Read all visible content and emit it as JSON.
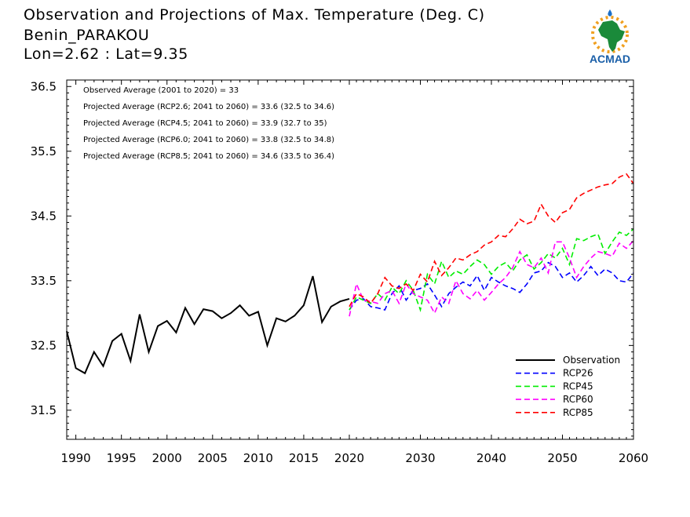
{
  "header": {
    "title_line1": "Observation and Projections of Max. Temperature (Deg. C)",
    "title_line2": "Benin_PARAKOU",
    "title_line3": "Lon=2.62 : Lat=9.35"
  },
  "logo": {
    "text": "ACMAD",
    "colors": {
      "africa": "#1a8a3a",
      "sun": "#f0a020",
      "text": "#1a5fa8"
    }
  },
  "chart_data": {
    "type": "line",
    "title": "Observation and Projections of Max. Temperature (Deg. C)",
    "xlabel": "",
    "ylabel": "",
    "xlim": [
      1989,
      2060
    ],
    "ylim": [
      31.05,
      36.6
    ],
    "x_ticks": [
      1990,
      1995,
      2000,
      2005,
      2010,
      2015,
      2020,
      2030,
      2040,
      2050,
      2060
    ],
    "x_tick_labels": [
      "1990",
      "1995",
      "2000",
      "2005",
      "2010",
      "2015",
      "2020",
      "2030",
      "2040",
      "2050",
      "2060"
    ],
    "y_ticks": [
      31.5,
      32.5,
      33.5,
      34.5,
      35.5,
      36.5
    ],
    "y_tick_labels": [
      "31.5",
      "32.5",
      "33.5",
      "34.5",
      "35.5",
      "36.5"
    ],
    "grid": false,
    "legend_position": "bottom-right",
    "annotations": [
      "Observed Average (2001 to 2020) = 33",
      "Projected Average (RCP2.6; 2041 to 2060) = 33.6 (32.5 to 34.6)",
      "Projected Average (RCP4.5; 2041 to 2060) = 33.9 (32.7 to 35)",
      "Projected Average (RCP6.0; 2041 to 2060) = 33.8 (32.5 to 34.8)",
      "Projected Average (RCP8.5; 2041 to 2060) = 34.6 (33.5 to 36.4)"
    ],
    "series": [
      {
        "name": "Observation",
        "color": "#000000",
        "dash": "solid",
        "x": [
          1989,
          1990,
          1991,
          1992,
          1993,
          1994,
          1995,
          1996,
          1997,
          1998,
          1999,
          2000,
          2001,
          2002,
          2003,
          2004,
          2005,
          2006,
          2007,
          2008,
          2009,
          2010,
          2011,
          2012,
          2013,
          2014,
          2015,
          2016,
          2017,
          2018,
          2019,
          2020
        ],
        "values": [
          32.72,
          32.15,
          32.07,
          32.4,
          32.18,
          32.57,
          32.68,
          32.26,
          32.98,
          32.4,
          32.8,
          32.88,
          32.7,
          33.08,
          32.83,
          33.06,
          33.03,
          32.92,
          33.0,
          33.12,
          32.96,
          33.02,
          32.5,
          32.92,
          32.87,
          32.96,
          33.12,
          33.57,
          32.86,
          33.1,
          33.18,
          33.22
        ]
      },
      {
        "name": "RCP26",
        "color": "#0000ff",
        "dash": "dashed",
        "x": [
          2020,
          2021,
          2022,
          2023,
          2024,
          2025,
          2026,
          2027,
          2028,
          2029,
          2030,
          2031,
          2032,
          2033,
          2034,
          2035,
          2036,
          2037,
          2038,
          2039,
          2040,
          2041,
          2042,
          2043,
          2044,
          2045,
          2046,
          2047,
          2048,
          2049,
          2050,
          2051,
          2052,
          2053,
          2054,
          2055,
          2056,
          2057,
          2058,
          2059,
          2060
        ],
        "values": [
          33.05,
          33.2,
          33.22,
          33.1,
          33.08,
          33.05,
          33.3,
          33.42,
          33.2,
          33.35,
          33.38,
          33.45,
          33.28,
          33.1,
          33.3,
          33.4,
          33.48,
          33.42,
          33.58,
          33.35,
          33.55,
          33.48,
          33.42,
          33.38,
          33.32,
          33.45,
          33.62,
          33.65,
          33.78,
          33.72,
          33.55,
          33.62,
          33.48,
          33.58,
          33.72,
          33.58,
          33.68,
          33.62,
          33.5,
          33.48,
          33.62
        ]
      },
      {
        "name": "RCP45",
        "color": "#00ee00",
        "dash": "dashed",
        "x": [
          2020,
          2021,
          2022,
          2023,
          2024,
          2025,
          2026,
          2027,
          2028,
          2029,
          2030,
          2031,
          2032,
          2033,
          2034,
          2035,
          2036,
          2037,
          2038,
          2039,
          2040,
          2041,
          2042,
          2043,
          2044,
          2045,
          2046,
          2047,
          2048,
          2049,
          2050,
          2051,
          2052,
          2053,
          2054,
          2055,
          2056,
          2057,
          2058,
          2059,
          2060
        ],
        "values": [
          33.05,
          33.25,
          33.2,
          33.15,
          33.3,
          33.2,
          33.4,
          33.3,
          33.5,
          33.35,
          33.05,
          33.6,
          33.45,
          33.8,
          33.55,
          33.65,
          33.6,
          33.72,
          33.82,
          33.75,
          33.6,
          33.72,
          33.78,
          33.65,
          33.82,
          33.9,
          33.68,
          33.78,
          33.92,
          33.85,
          34.0,
          33.75,
          34.15,
          34.12,
          34.18,
          34.22,
          33.92,
          34.1,
          34.25,
          34.2,
          34.3
        ]
      },
      {
        "name": "RCP60",
        "color": "#ff00ff",
        "dash": "dashed",
        "x": [
          2020,
          2021,
          2022,
          2023,
          2024,
          2025,
          2026,
          2027,
          2028,
          2029,
          2030,
          2031,
          2032,
          2033,
          2034,
          2035,
          2036,
          2037,
          2038,
          2039,
          2040,
          2041,
          2042,
          2043,
          2044,
          2045,
          2046,
          2047,
          2048,
          2049,
          2050,
          2051,
          2052,
          2053,
          2054,
          2055,
          2056,
          2057,
          2058,
          2059,
          2060
        ],
        "values": [
          32.95,
          33.45,
          33.2,
          33.18,
          33.15,
          33.3,
          33.35,
          33.15,
          33.45,
          33.3,
          33.25,
          33.2,
          33.0,
          33.25,
          33.15,
          33.5,
          33.3,
          33.22,
          33.35,
          33.2,
          33.32,
          33.45,
          33.55,
          33.7,
          33.95,
          33.75,
          33.7,
          33.85,
          33.62,
          34.1,
          34.1,
          33.85,
          33.55,
          33.72,
          33.85,
          33.95,
          33.92,
          33.88,
          34.08,
          34.0,
          34.12
        ]
      },
      {
        "name": "RCP85",
        "color": "#ff0000",
        "dash": "dashed",
        "x": [
          2020,
          2021,
          2022,
          2023,
          2024,
          2025,
          2026,
          2027,
          2028,
          2029,
          2030,
          2031,
          2032,
          2033,
          2034,
          2035,
          2036,
          2037,
          2038,
          2039,
          2040,
          2041,
          2042,
          2043,
          2044,
          2045,
          2046,
          2047,
          2048,
          2049,
          2050,
          2051,
          2052,
          2053,
          2054,
          2055,
          2056,
          2057,
          2058,
          2059,
          2060
        ],
        "values": [
          33.1,
          33.3,
          33.25,
          33.15,
          33.3,
          33.55,
          33.42,
          33.38,
          33.45,
          33.35,
          33.6,
          33.48,
          33.8,
          33.58,
          33.7,
          33.85,
          33.82,
          33.9,
          33.95,
          34.05,
          34.1,
          34.2,
          34.18,
          34.3,
          34.45,
          34.38,
          34.42,
          34.68,
          34.5,
          34.4,
          34.55,
          34.6,
          34.78,
          34.85,
          34.9,
          34.95,
          34.98,
          35.0,
          35.1,
          35.15,
          35.0
        ]
      }
    ]
  }
}
